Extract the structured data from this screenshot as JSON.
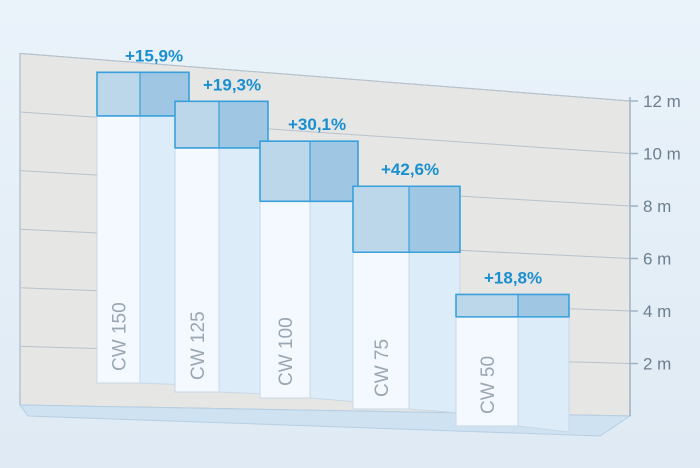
{
  "chart_data": {
    "type": "bar",
    "subtype": "3d-stacked",
    "categories": [
      "CW 150",
      "CW 125",
      "CW 100",
      "CW 75",
      "CW 50"
    ],
    "series": [
      {
        "values": [
          9.8,
          8.9,
          7.2,
          5.7,
          3.9
        ]
      },
      {
        "values": [
          11.4,
          10.6,
          9.4,
          8.1,
          4.7
        ]
      }
    ],
    "annotations": [
      "+15,9%",
      "+19,3%",
      "+30,1%",
      "+42,6%",
      "+18,8%"
    ],
    "y_ticks": [
      "12 m",
      "10 m",
      "8 m",
      "6 m",
      "4 m",
      "2 m"
    ],
    "y_tick_values": [
      12,
      10,
      8,
      6,
      4,
      2
    ],
    "ylim": [
      0,
      12
    ],
    "grid": true,
    "colors": {
      "base_front": "#f3f9fe",
      "base_side": "#dcecf9",
      "top_front": "#bcd6ea",
      "top_side": "#9fc6e3",
      "edge": "#3aa0db",
      "panel": "#e6e6e4",
      "grid": "#b8c2cc",
      "delta_text": "#1a8fd0",
      "tick_text": "#6d7f8f"
    }
  }
}
